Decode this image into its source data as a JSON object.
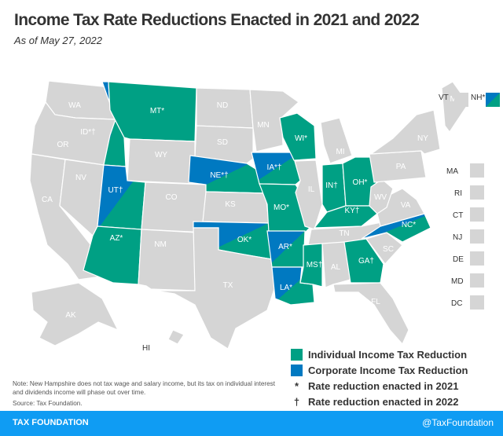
{
  "header": {
    "title": "Income Tax Rate Reductions Enacted in 2021 and 2022",
    "subtitle": "As of May 27, 2022"
  },
  "colors": {
    "individual": "#00a084",
    "corporate": "#0079c1",
    "none": "#d5d5d5",
    "footer": "#0f9cf3"
  },
  "states": [
    {
      "abbr": "WA",
      "label": "WA",
      "status": "none"
    },
    {
      "abbr": "OR",
      "label": "OR",
      "status": "none"
    },
    {
      "abbr": "CA",
      "label": "CA",
      "status": "none"
    },
    {
      "abbr": "NV",
      "label": "NV",
      "status": "none"
    },
    {
      "abbr": "ID",
      "label": "ID*†",
      "status": "both"
    },
    {
      "abbr": "MT",
      "label": "MT*",
      "status": "individual"
    },
    {
      "abbr": "WY",
      "label": "WY",
      "status": "none"
    },
    {
      "abbr": "UT",
      "label": "UT†",
      "status": "both"
    },
    {
      "abbr": "CO",
      "label": "CO",
      "status": "none"
    },
    {
      "abbr": "AZ",
      "label": "AZ*",
      "status": "individual"
    },
    {
      "abbr": "NM",
      "label": "NM",
      "status": "none"
    },
    {
      "abbr": "ND",
      "label": "ND",
      "status": "none"
    },
    {
      "abbr": "SD",
      "label": "SD",
      "status": "none"
    },
    {
      "abbr": "NE",
      "label": "NE*†",
      "status": "both"
    },
    {
      "abbr": "KS",
      "label": "KS",
      "status": "none"
    },
    {
      "abbr": "OK",
      "label": "OK*",
      "status": "both"
    },
    {
      "abbr": "TX",
      "label": "TX",
      "status": "none"
    },
    {
      "abbr": "MN",
      "label": "MN",
      "status": "none"
    },
    {
      "abbr": "IA",
      "label": "IA*†",
      "status": "both"
    },
    {
      "abbr": "MO",
      "label": "MO*",
      "status": "individual"
    },
    {
      "abbr": "AR",
      "label": "AR*",
      "status": "both"
    },
    {
      "abbr": "LA",
      "label": "LA*",
      "status": "both"
    },
    {
      "abbr": "WI",
      "label": "WI*",
      "status": "individual"
    },
    {
      "abbr": "IL",
      "label": "IL",
      "status": "none"
    },
    {
      "abbr": "MI",
      "label": "MI",
      "status": "none"
    },
    {
      "abbr": "IN",
      "label": "IN†",
      "status": "individual"
    },
    {
      "abbr": "OH",
      "label": "OH*",
      "status": "individual"
    },
    {
      "abbr": "KY",
      "label": "KY†",
      "status": "individual"
    },
    {
      "abbr": "TN",
      "label": "TN",
      "status": "none"
    },
    {
      "abbr": "MS",
      "label": "MS†",
      "status": "individual"
    },
    {
      "abbr": "AL",
      "label": "AL",
      "status": "none"
    },
    {
      "abbr": "GA",
      "label": "GA†",
      "status": "individual"
    },
    {
      "abbr": "FL",
      "label": "FL",
      "status": "none"
    },
    {
      "abbr": "SC",
      "label": "SC",
      "status": "none"
    },
    {
      "abbr": "NC",
      "label": "NC*",
      "status": "both"
    },
    {
      "abbr": "VA",
      "label": "VA",
      "status": "none"
    },
    {
      "abbr": "WV",
      "label": "WV",
      "status": "none"
    },
    {
      "abbr": "PA",
      "label": "PA",
      "status": "none"
    },
    {
      "abbr": "NY",
      "label": "NY",
      "status": "none"
    },
    {
      "abbr": "ME",
      "label": "ME",
      "status": "none"
    },
    {
      "abbr": "AK",
      "label": "AK",
      "status": "none"
    },
    {
      "abbr": "HI",
      "label": "HI",
      "status": "none"
    }
  ],
  "small_states": [
    {
      "abbr": "VT",
      "label": "VT",
      "status": "none"
    },
    {
      "abbr": "NH",
      "label": "NH*",
      "status": "both"
    },
    {
      "abbr": "MA",
      "label": "MA",
      "status": "none"
    },
    {
      "abbr": "RI",
      "label": "RI",
      "status": "none"
    },
    {
      "abbr": "CT",
      "label": "CT",
      "status": "none"
    },
    {
      "abbr": "NJ",
      "label": "NJ",
      "status": "none"
    },
    {
      "abbr": "DE",
      "label": "DE",
      "status": "none"
    },
    {
      "abbr": "MD",
      "label": "MD",
      "status": "none"
    },
    {
      "abbr": "DC",
      "label": "DC",
      "status": "none"
    }
  ],
  "legend": {
    "individual": "Individual Income Tax Reduction",
    "corporate": "Corporate Income Tax Reduction",
    "asterisk_symbol": "*",
    "asterisk": "Rate reduction enacted in 2021",
    "dagger_symbol": "†",
    "dagger": "Rate reduction enacted in 2022"
  },
  "note": "Note: New Hampshire does not tax wage and salary income, but its tax on individual interest and dividends income will phase out over time.",
  "source": "Source: Tax Foundation.",
  "footer": {
    "brand": "TAX FOUNDATION",
    "handle": "@TaxFoundation"
  }
}
